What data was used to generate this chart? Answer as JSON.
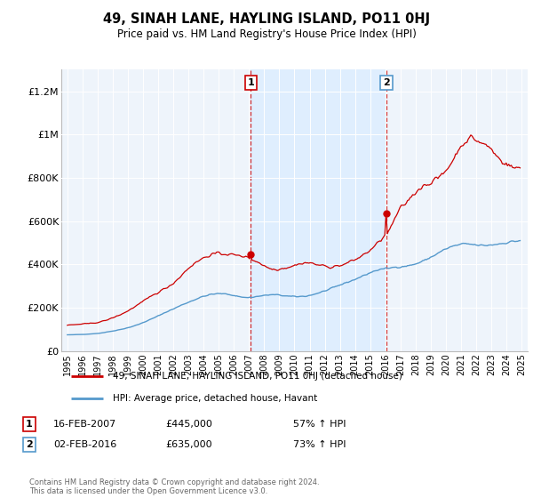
{
  "title": "49, SINAH LANE, HAYLING ISLAND, PO11 0HJ",
  "subtitle": "Price paid vs. HM Land Registry's House Price Index (HPI)",
  "legend_line1": "49, SINAH LANE, HAYLING ISLAND, PO11 0HJ (detached house)",
  "legend_line2": "HPI: Average price, detached house, Havant",
  "sale1_date": "16-FEB-2007",
  "sale1_price": 445000,
  "sale1_label": "57% ↑ HPI",
  "sale2_date": "02-FEB-2016",
  "sale2_price": 635000,
  "sale2_label": "73% ↑ HPI",
  "footer": "Contains HM Land Registry data © Crown copyright and database right 2024.\nThis data is licensed under the Open Government Licence v3.0.",
  "red_color": "#cc0000",
  "blue_color": "#5599cc",
  "shade_color": "#ddeeff",
  "bg_color": "#eef4fb",
  "sale1_x": 2007.12,
  "sale2_x": 2016.08,
  "ylim": [
    0,
    1300000
  ],
  "yticks": [
    0,
    200000,
    400000,
    600000,
    800000,
    1000000,
    1200000
  ],
  "ytick_labels": [
    "£0",
    "£200K",
    "£400K",
    "£600K",
    "£800K",
    "£1M",
    "£1.2M"
  ],
  "xlim_left": 1994.6,
  "xlim_right": 2025.4
}
